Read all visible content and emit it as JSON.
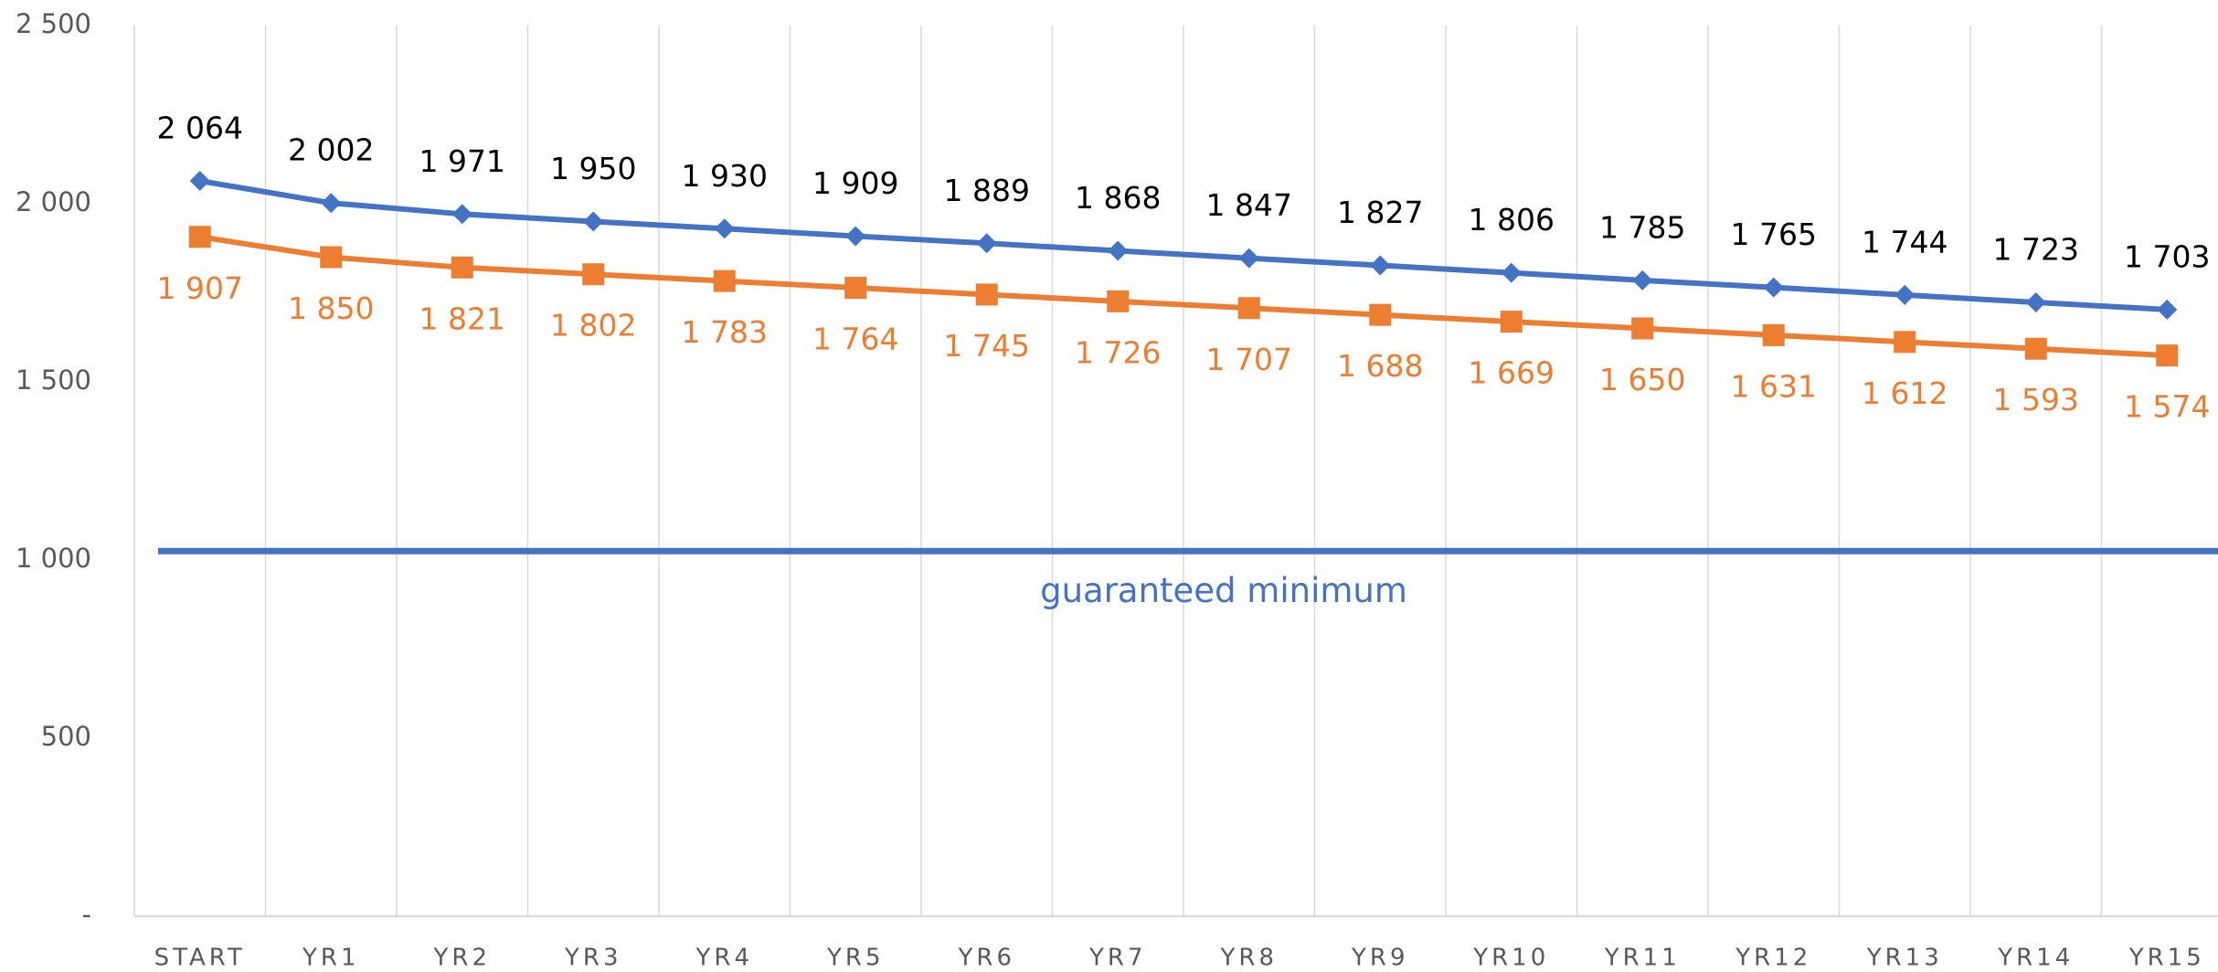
{
  "chart_data": {
    "type": "line",
    "categories": [
      "START",
      "YR1",
      "YR2",
      "YR3",
      "YR4",
      "YR5",
      "YR6",
      "YR7",
      "YR8",
      "YR9",
      "YR10",
      "YR11",
      "YR12",
      "YR13",
      "YR14",
      "YR15"
    ],
    "series": [
      {
        "color": "#4472c4",
        "marker": "diamond",
        "label_position": "above",
        "label_color": "#000000",
        "values": [
          2064,
          2002,
          1971,
          1950,
          1930,
          1909,
          1889,
          1868,
          1847,
          1827,
          1806,
          1785,
          1765,
          1744,
          1723,
          1703
        ],
        "value_labels": [
          "2 064",
          "2 002",
          "1 971",
          "1 950",
          "1 930",
          "1 909",
          "1 889",
          "1 868",
          "1 847",
          "1 827",
          "1 806",
          "1 785",
          "1 765",
          "1 744",
          "1 723",
          "1 703"
        ]
      },
      {
        "color": "#ed7d31",
        "marker": "square",
        "label_position": "below",
        "label_color": "#ed7d31",
        "values": [
          1907,
          1850,
          1821,
          1802,
          1783,
          1764,
          1745,
          1726,
          1707,
          1688,
          1669,
          1650,
          1631,
          1612,
          1593,
          1574
        ],
        "value_labels": [
          "1 907",
          "1 850",
          "1 821",
          "1 802",
          "1 783",
          "1 764",
          "1 745",
          "1 726",
          "1 707",
          "1 688",
          "1 669",
          "1 650",
          "1 631",
          "1 612",
          "1 593",
          "1 574"
        ]
      }
    ],
    "reference_line": {
      "label": "guaranteed minimum",
      "value": 1025,
      "color": "#4472c4"
    },
    "ylim": [
      0,
      2500
    ],
    "yticks": [
      {
        "value": 0,
        "label": "-"
      },
      500,
      {
        "value": 1000,
        "label": "1 000"
      },
      {
        "value": 1500,
        "label": "1 500"
      },
      {
        "value": 2000,
        "label": "2 000"
      },
      {
        "value": 2500,
        "label": "2 500"
      }
    ],
    "grid": false
  }
}
